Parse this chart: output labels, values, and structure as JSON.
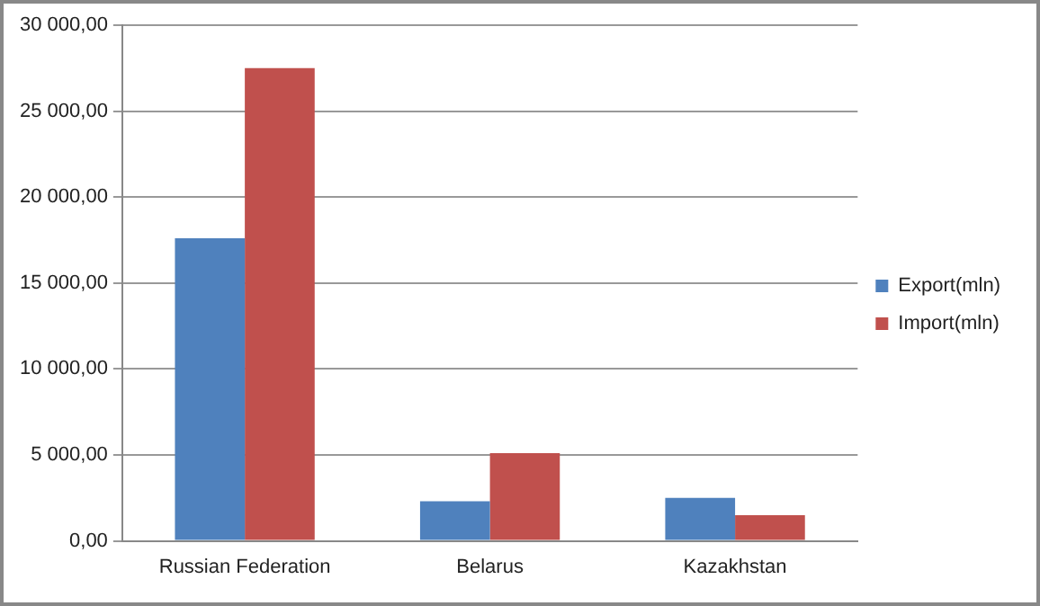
{
  "chart_data": {
    "type": "bar",
    "categories": [
      "Russian Federation",
      "Belarus",
      "Kazakhstan"
    ],
    "series": [
      {
        "name": "Export(mln)",
        "color": "#4f81bd",
        "values": [
          17600,
          2300,
          2500
        ]
      },
      {
        "name": "Import(mln)",
        "color": "#c0504d",
        "values": [
          27500,
          5100,
          1500
        ]
      }
    ],
    "ylim": [
      0,
      30000
    ],
    "yticks": [
      {
        "value": 0,
        "label": "0,00"
      },
      {
        "value": 5000,
        "label": "5 000,00"
      },
      {
        "value": 10000,
        "label": "10 000,00"
      },
      {
        "value": 15000,
        "label": "15 000,00"
      },
      {
        "value": 20000,
        "label": "20 000,00"
      },
      {
        "value": 25000,
        "label": "25 000,00"
      },
      {
        "value": 30000,
        "label": "30 000,00"
      }
    ],
    "grid": "y",
    "legend": "right"
  }
}
